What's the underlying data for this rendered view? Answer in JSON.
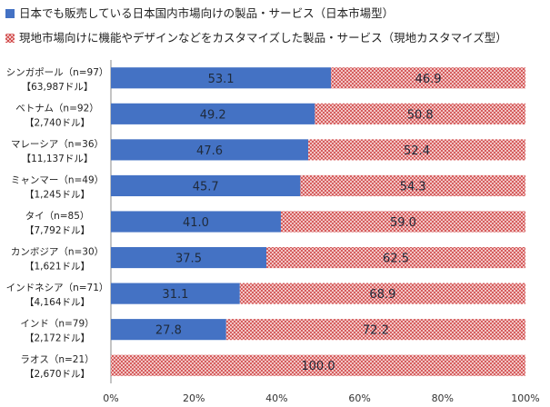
{
  "chart_data": {
    "type": "bar",
    "orientation": "horizontal",
    "stacked": true,
    "categories": [
      {
        "name": "シンガポール（n=97）",
        "sub": "【63,987ドル】"
      },
      {
        "name": "ベトナム（n=92）",
        "sub": "【2,740ドル】"
      },
      {
        "name": "マレーシア（n=36）",
        "sub": "【11,137ドル】"
      },
      {
        "name": "ミャンマー（n=49）",
        "sub": "【1,245ドル】"
      },
      {
        "name": "タイ（n=85）",
        "sub": "【7,792ドル】"
      },
      {
        "name": "カンボジア（n=30）",
        "sub": "【1,621ドル】"
      },
      {
        "name": "インドネシア（n=71）",
        "sub": "【4,164ドル】"
      },
      {
        "name": "インド（n=79）",
        "sub": "【2,172ドル】"
      },
      {
        "name": "ラオス（n=21）",
        "sub": "【2,670ドル】"
      }
    ],
    "series": [
      {
        "name": "日本でも販売している日本国内市場向けの製品・サービス（日本市場型）",
        "color": "#4472c4",
        "pattern": "solid",
        "values": [
          53.1,
          49.2,
          47.6,
          45.7,
          41.0,
          37.5,
          31.1,
          27.8,
          0
        ]
      },
      {
        "name": "現地市場向けに機能やデザインなどをカスタマイズした製品・サービス（現地カスタマイズ型）",
        "color": "#d04a4a",
        "pattern": "hatch",
        "values": [
          46.9,
          50.8,
          52.4,
          54.3,
          59.0,
          62.5,
          68.9,
          72.2,
          100.0
        ]
      }
    ],
    "xlim": [
      0,
      100
    ],
    "xticks": [
      "0%",
      "20%",
      "40%",
      "60%",
      "80%",
      "100%"
    ],
    "legend_position": "top"
  }
}
